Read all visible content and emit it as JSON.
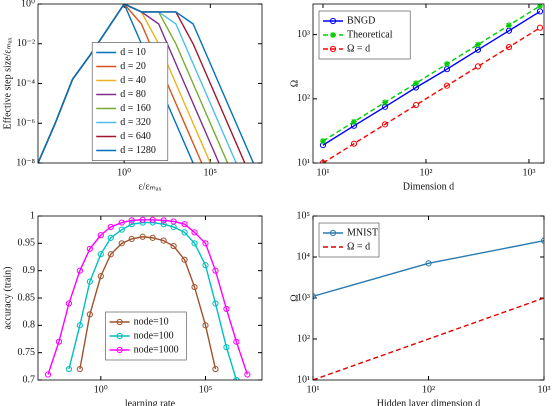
{
  "chart_data": [
    {
      "type": "line",
      "xlabel": "ε/εₘₐₓ",
      "ylabel": "Effective step size/εₘₐₓ",
      "xscale": "log",
      "yscale": "log",
      "xlim": [
        1e-05,
        100000000
      ],
      "ylim": [
        1e-08,
        1
      ],
      "xticks": [
        {
          "value": 1,
          "label": "10⁰"
        },
        {
          "value": 100000,
          "label": "10⁵"
        }
      ],
      "yticks": [
        {
          "value": 1e-08,
          "label": "10⁻⁸"
        },
        {
          "value": 1e-06,
          "label": "10⁻⁶"
        },
        {
          "value": 0.0001,
          "label": "10⁻⁴"
        },
        {
          "value": 0.01,
          "label": "10⁻²"
        },
        {
          "value": 1,
          "label": "10⁰"
        }
      ],
      "legend": "center",
      "x": [
        1e-05,
        0.0001,
        0.001,
        0.01,
        0.1,
        1,
        10,
        100,
        1000,
        10000,
        100000,
        1000000,
        10000000,
        100000000
      ],
      "series": [
        {
          "name": "d = 10",
          "color": "#0072bd",
          "values": [
            1e-08,
            1e-06,
            0.00016,
            0.0025,
            0.05,
            1,
            0.01,
            0.0001,
            1e-06,
            1e-08,
            1e-10,
            null,
            null,
            null
          ]
        },
        {
          "name": "d = 20",
          "color": "#d95319",
          "values": [
            1e-08,
            1e-06,
            0.00016,
            0.0025,
            0.05,
            1,
            0.1,
            0.001,
            1e-05,
            1e-07,
            1e-09,
            null,
            null,
            null
          ]
        },
        {
          "name": "d = 40",
          "color": "#edb120",
          "values": [
            1e-08,
            1e-06,
            0.00016,
            0.0025,
            0.05,
            1,
            0.4,
            0.01,
            0.0001,
            1e-06,
            1e-08,
            1e-10,
            null,
            null
          ]
        },
        {
          "name": "d = 80",
          "color": "#7e2f8e",
          "values": [
            1e-08,
            1e-06,
            0.00016,
            0.0025,
            0.05,
            1,
            0.4,
            0.1,
            0.001,
            1e-05,
            1e-07,
            1e-09,
            null,
            null
          ]
        },
        {
          "name": "d = 160",
          "color": "#77ac30",
          "values": [
            1e-08,
            1e-06,
            0.00016,
            0.0025,
            0.05,
            1,
            0.4,
            0.4,
            0.01,
            0.0001,
            1e-06,
            1e-08,
            1e-10,
            null
          ]
        },
        {
          "name": "d = 320",
          "color": "#4dbeee",
          "values": [
            1e-08,
            1e-06,
            0.00016,
            0.0025,
            0.05,
            1,
            0.4,
            0.4,
            0.1,
            0.001,
            1e-05,
            1e-07,
            1e-09,
            null
          ]
        },
        {
          "name": "d = 640",
          "color": "#a2142f",
          "values": [
            1e-08,
            1e-06,
            0.00016,
            0.0025,
            0.05,
            1,
            0.4,
            0.4,
            0.4,
            0.01,
            0.0001,
            1e-06,
            1e-08,
            1e-10
          ]
        },
        {
          "name": "d = 1280",
          "color": "#0072bd",
          "values": [
            1e-08,
            1e-06,
            0.00016,
            0.0025,
            0.05,
            1,
            0.4,
            0.4,
            0.4,
            0.1,
            0.001,
            1e-05,
            1e-07,
            1e-09
          ]
        }
      ]
    },
    {
      "type": "line",
      "xlabel": "Dimension d",
      "ylabel": "Ω",
      "xscale": "log",
      "yscale": "log",
      "xlim": [
        8,
        1400
      ],
      "ylim": [
        10,
        3000
      ],
      "xticks": [
        {
          "value": 10,
          "label": "10¹"
        },
        {
          "value": 100,
          "label": "10²"
        },
        {
          "value": 1000,
          "label": "10³"
        }
      ],
      "yticks": [
        {
          "value": 10,
          "label": "10¹"
        },
        {
          "value": 100,
          "label": "10²"
        },
        {
          "value": 1000,
          "label": "10³"
        }
      ],
      "legend": "upper-left",
      "x": [
        10,
        20,
        40,
        80,
        160,
        320,
        640,
        1280
      ],
      "series": [
        {
          "name": "BNGD",
          "color": "#0000ff",
          "marker": "circle",
          "values": [
            19,
            38,
            75,
            150,
            290,
            580,
            1150,
            2300
          ]
        },
        {
          "name": "Theoretical",
          "color": "#00cc00",
          "marker": "asterisk",
          "dash": true,
          "values": [
            22,
            44,
            88,
            175,
            350,
            700,
            1400,
            2800
          ]
        },
        {
          "name": "Ω = d",
          "color": "#ff0000",
          "marker": "circle",
          "dash": true,
          "values": [
            10,
            20,
            40,
            80,
            160,
            320,
            640,
            1280
          ]
        }
      ]
    },
    {
      "type": "line",
      "xlabel": "learning rate",
      "ylabel": "accuracy (train)",
      "xscale": "log",
      "yscale": "linear",
      "xlim": [
        0.001,
        50000000
      ],
      "ylim": [
        0.7,
        1
      ],
      "xticks": [
        {
          "value": 1,
          "label": "10⁰"
        },
        {
          "value": 100000,
          "label": "10⁵"
        }
      ],
      "yticks": [
        0.7,
        0.75,
        0.8,
        0.85,
        0.9,
        0.95,
        1
      ],
      "legend": "lower-center",
      "x": [
        0.003,
        0.01,
        0.03,
        0.1,
        0.3,
        1,
        3,
        10,
        30,
        100,
        300,
        1000,
        3000,
        10000,
        30000,
        100000,
        300000,
        1000000,
        3000000,
        10000000
      ],
      "series": [
        {
          "name": "node=10",
          "color": "#a0522d",
          "marker": "circle",
          "values": [
            null,
            null,
            null,
            0.72,
            0.82,
            0.89,
            0.93,
            0.95,
            0.958,
            0.962,
            0.96,
            0.955,
            0.945,
            0.92,
            0.87,
            0.8,
            0.72,
            null,
            null,
            null
          ]
        },
        {
          "name": "node=100",
          "color": "#00bfbf",
          "marker": "circle",
          "values": [
            null,
            null,
            0.72,
            0.8,
            0.88,
            0.93,
            0.96,
            0.975,
            0.985,
            0.988,
            0.988,
            0.985,
            0.98,
            0.97,
            0.95,
            0.91,
            0.84,
            0.76,
            0.7,
            null
          ]
        },
        {
          "name": "node=1000",
          "color": "#ff00ff",
          "marker": "circle",
          "values": [
            0.71,
            0.77,
            0.84,
            0.9,
            0.94,
            0.965,
            0.98,
            0.988,
            0.992,
            0.993,
            0.993,
            0.992,
            0.99,
            0.985,
            0.97,
            0.95,
            0.9,
            0.83,
            0.77,
            0.71
          ]
        }
      ]
    },
    {
      "type": "line",
      "xlabel": "Hidden layer dimension d",
      "ylabel": "Ω",
      "xscale": "log",
      "yscale": "log",
      "xlim": [
        10,
        1000
      ],
      "ylim": [
        10,
        100000
      ],
      "xticks": [
        {
          "value": 10,
          "label": "10¹"
        },
        {
          "value": 100,
          "label": "10²"
        },
        {
          "value": 1000,
          "label": "10³"
        }
      ],
      "yticks": [
        {
          "value": 10,
          "label": "10¹"
        },
        {
          "value": 100,
          "label": "10²"
        },
        {
          "value": 1000,
          "label": "10³"
        },
        {
          "value": 10000,
          "label": "10⁴"
        },
        {
          "value": 100000,
          "label": "10⁵"
        }
      ],
      "legend": "upper-left",
      "x": [
        10,
        100,
        1000
      ],
      "series": [
        {
          "name": "MNIST",
          "color": "#2a7ab0",
          "marker": "circle",
          "values": [
            1100,
            7000,
            25000
          ]
        },
        {
          "name": "Ω = d",
          "color": "#e00000",
          "dash": true,
          "values": [
            10,
            100,
            1000
          ]
        }
      ]
    }
  ]
}
